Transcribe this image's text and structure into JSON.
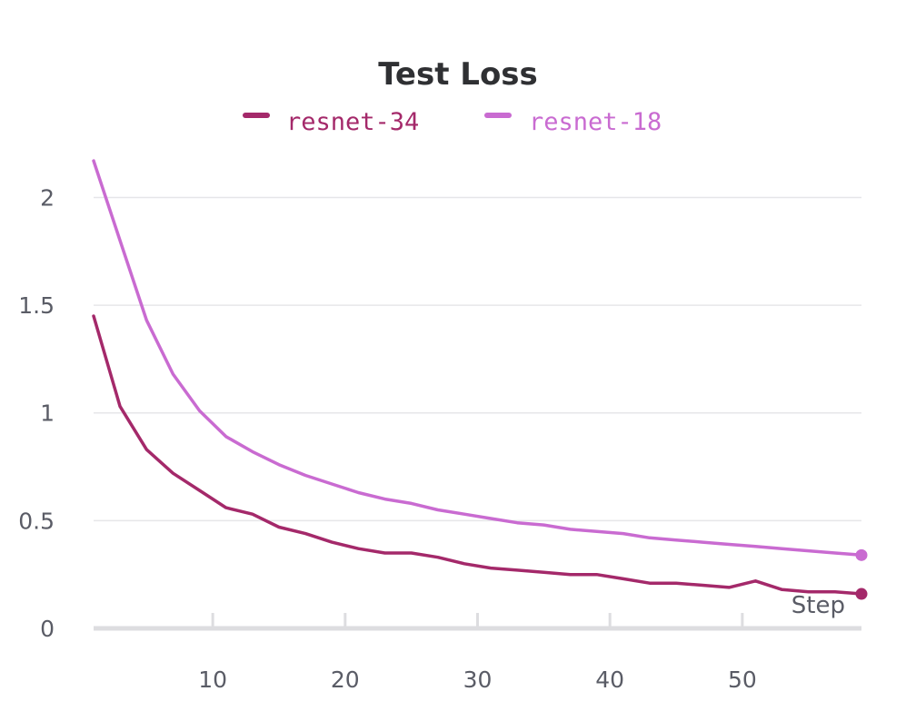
{
  "chart_data": {
    "type": "line",
    "title": "Test Loss",
    "xlabel": "Step",
    "ylabel": "",
    "xlim": [
      1,
      59
    ],
    "ylim": [
      0,
      2.2
    ],
    "x_ticks": [
      10,
      20,
      30,
      40,
      50
    ],
    "y_ticks": [
      0,
      0.5,
      1,
      1.5,
      2
    ],
    "y_tick_labels": [
      "0",
      "0.5",
      "1",
      "1.5",
      "2"
    ],
    "grid": "horizontal",
    "legend_position": "top-center",
    "series": [
      {
        "name": "resnet-34",
        "color": "#a4296a",
        "x": [
          1,
          3,
          5,
          7,
          9,
          11,
          13,
          15,
          17,
          19,
          21,
          23,
          25,
          27,
          29,
          31,
          33,
          35,
          37,
          39,
          41,
          43,
          45,
          47,
          49,
          51,
          53,
          55,
          57,
          59
        ],
        "y": [
          1.45,
          1.03,
          0.83,
          0.72,
          0.64,
          0.56,
          0.53,
          0.47,
          0.44,
          0.4,
          0.37,
          0.35,
          0.35,
          0.33,
          0.3,
          0.28,
          0.27,
          0.26,
          0.25,
          0.25,
          0.23,
          0.21,
          0.21,
          0.2,
          0.19,
          0.22,
          0.18,
          0.17,
          0.17,
          0.16
        ]
      },
      {
        "name": "resnet-18",
        "color": "#c96bd1",
        "x": [
          1,
          3,
          5,
          7,
          9,
          11,
          13,
          15,
          17,
          19,
          21,
          23,
          25,
          27,
          29,
          31,
          33,
          35,
          37,
          39,
          41,
          43,
          45,
          47,
          49,
          51,
          53,
          55,
          57,
          59
        ],
        "y": [
          2.17,
          1.8,
          1.43,
          1.18,
          1.01,
          0.89,
          0.82,
          0.76,
          0.71,
          0.67,
          0.63,
          0.6,
          0.58,
          0.55,
          0.53,
          0.51,
          0.49,
          0.48,
          0.46,
          0.45,
          0.44,
          0.42,
          0.41,
          0.4,
          0.39,
          0.38,
          0.37,
          0.36,
          0.35,
          0.34
        ]
      }
    ]
  }
}
